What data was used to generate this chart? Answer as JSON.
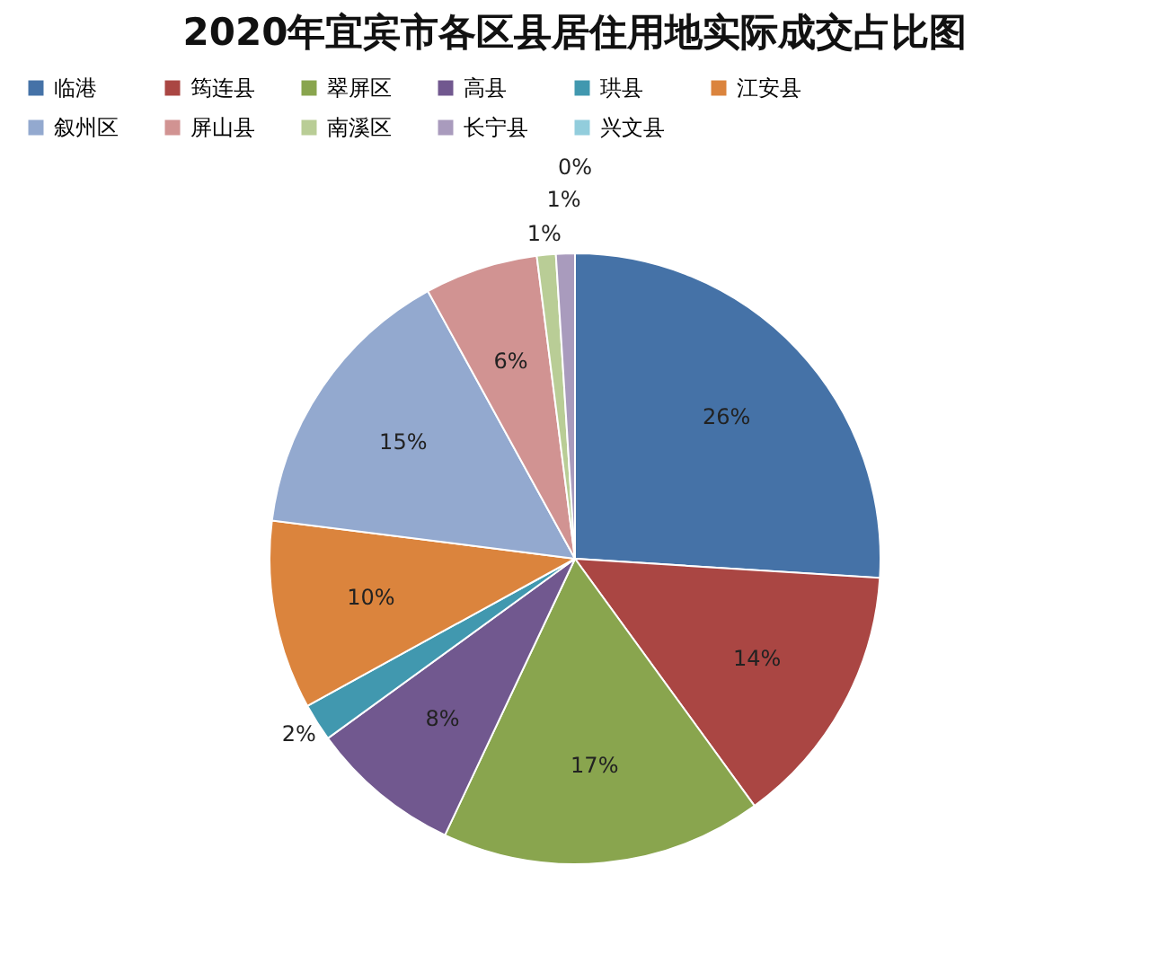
{
  "chart_data": {
    "type": "pie",
    "title": "2020年宜宾市各区县居住用地实际成交占比图",
    "categories": [
      "临港",
      "筠连县",
      "翠屏区",
      "高县",
      "珙县",
      "江安县",
      "叙州区",
      "屏山县",
      "南溪区",
      "长宁县",
      "兴文县"
    ],
    "values": [
      26,
      14,
      17,
      8,
      2,
      10,
      15,
      6,
      1,
      1,
      0
    ],
    "value_labels": [
      "26%",
      "14%",
      "17%",
      "8%",
      "2%",
      "10%",
      "15%",
      "6%",
      "1%",
      "1%",
      "0%"
    ],
    "colors": [
      "#4572a7",
      "#aa4643",
      "#89a54e",
      "#71588f",
      "#4198af",
      "#db843d",
      "#93a9cf",
      "#d19392",
      "#b9cd96",
      "#a99bbd",
      "#92cddc"
    ],
    "legend": "top"
  }
}
